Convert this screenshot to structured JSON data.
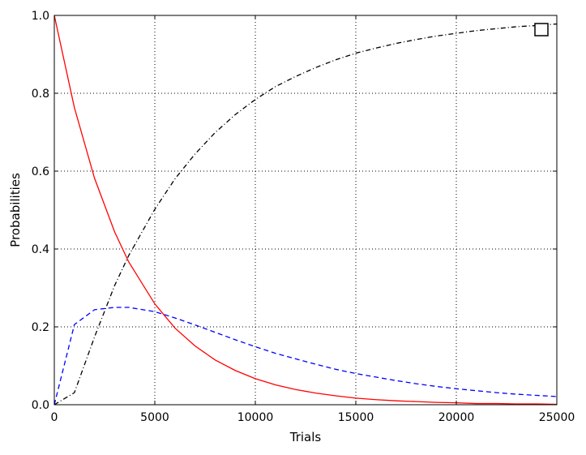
{
  "chart_data": {
    "type": "line",
    "title": "",
    "xlabel": "Trials",
    "ylabel": "Probabilities",
    "xlim": [
      0,
      25000
    ],
    "ylim": [
      0,
      1.0
    ],
    "xticks": [
      0,
      5000,
      10000,
      15000,
      20000,
      25000
    ],
    "xtick_labels": [
      "0",
      "5000",
      "10000",
      "15000",
      "20000",
      "25000"
    ],
    "yticks": [
      0.0,
      0.2,
      0.4,
      0.6,
      0.8,
      1.0
    ],
    "ytick_labels": [
      "0.0",
      "0.2",
      "0.4",
      "0.6",
      "0.8",
      "1.0"
    ],
    "grid": true,
    "legend": "top-right",
    "x": [
      0,
      1000,
      2000,
      3000,
      3700,
      5000,
      6000,
      7000,
      8000,
      9000,
      10000,
      11000,
      12000,
      13000,
      14000,
      15000,
      16000,
      17000,
      18000,
      19000,
      20000,
      21000,
      22000,
      23000,
      24000,
      25000
    ],
    "series": [
      {
        "color": "#ff0000",
        "style": "solid",
        "values": [
          1.0,
          0.763,
          0.582,
          0.444,
          0.367,
          0.259,
          0.197,
          0.151,
          0.115,
          0.088,
          0.067,
          0.051,
          0.039,
          0.03,
          0.023,
          0.017,
          0.013,
          0.01,
          0.008,
          0.006,
          0.005,
          0.003,
          0.003,
          0.002,
          0.002,
          0.001
        ]
      },
      {
        "color": "#0000ff",
        "style": "dashed",
        "values": [
          0.0,
          0.206,
          0.244,
          0.25,
          0.25,
          0.239,
          0.223,
          0.205,
          0.186,
          0.167,
          0.149,
          0.132,
          0.118,
          0.104,
          0.091,
          0.08,
          0.071,
          0.062,
          0.054,
          0.047,
          0.041,
          0.036,
          0.031,
          0.027,
          0.024,
          0.021
        ]
      },
      {
        "color": "#000000",
        "style": "dashdot",
        "values": [
          0.0,
          0.031,
          0.174,
          0.306,
          0.383,
          0.502,
          0.58,
          0.644,
          0.699,
          0.745,
          0.784,
          0.817,
          0.843,
          0.866,
          0.886,
          0.903,
          0.916,
          0.928,
          0.938,
          0.947,
          0.954,
          0.961,
          0.966,
          0.971,
          0.974,
          0.978
        ]
      }
    ]
  }
}
